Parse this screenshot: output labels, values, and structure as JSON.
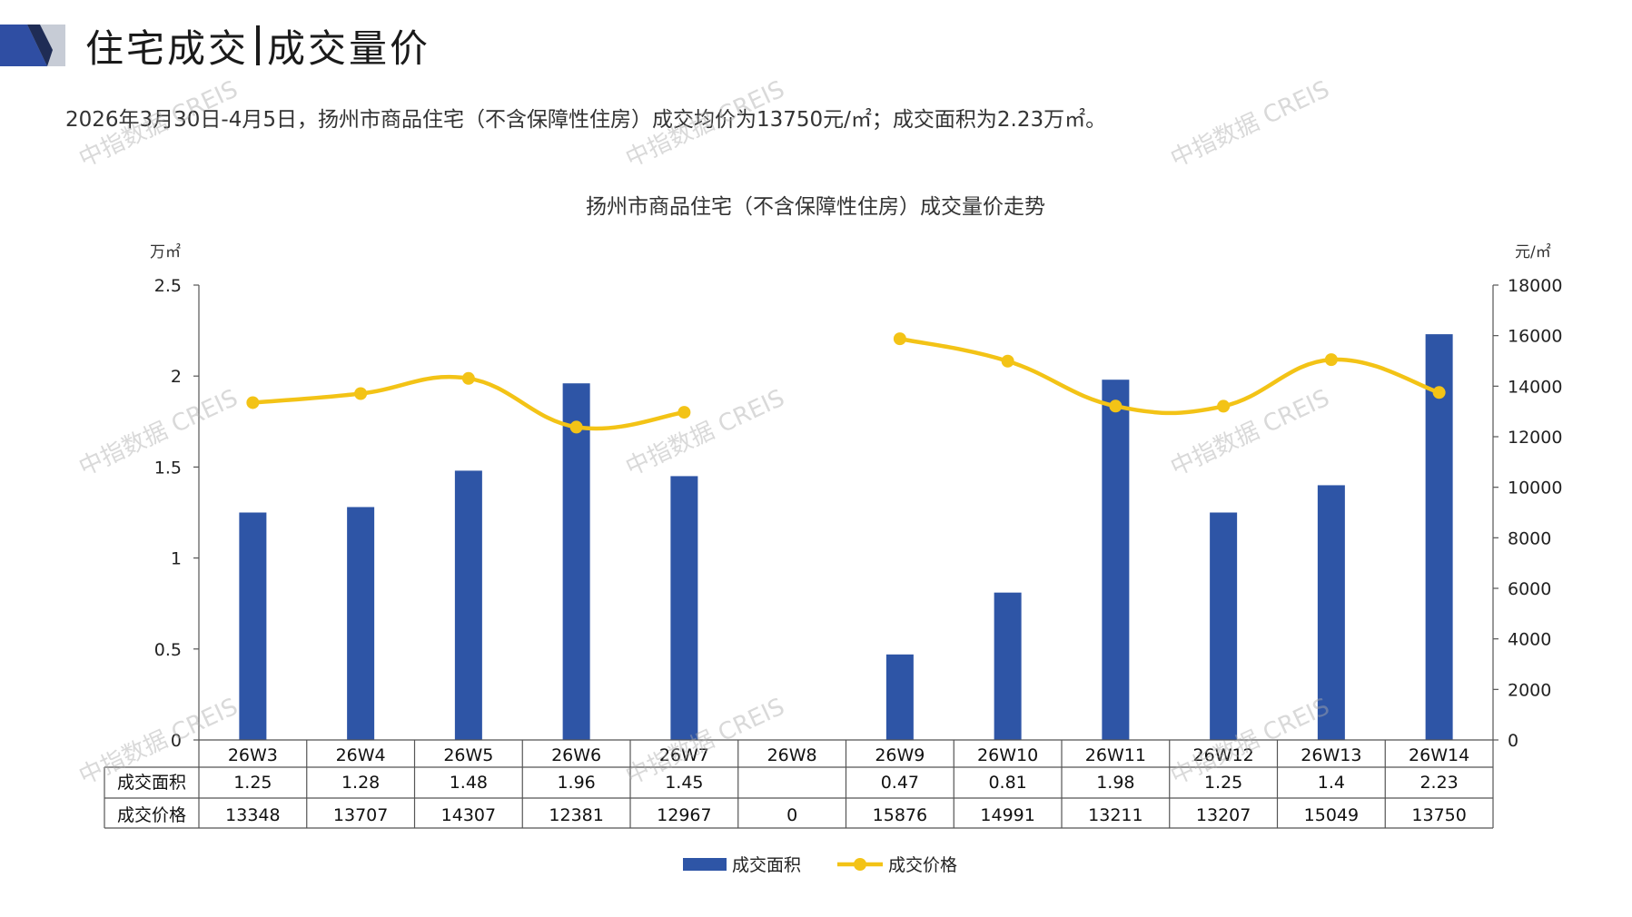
{
  "page": {
    "title_part1": "住宅成交",
    "title_part2": "成交量价",
    "summary": "2026年3月30日-4月5日，扬州市商品住宅（不含保障性住房）成交均价为13750元/㎡；成交面积为2.23万㎡。",
    "watermark": "中指数据 CREIS",
    "colors": {
      "logo_dark": "#2f4ea3",
      "logo_light": "#c7ccd6"
    }
  },
  "chart_data": {
    "type": "bar+line",
    "title": "扬州市商品住宅（不含保障性住房）成交量价走势",
    "left_unit": "万㎡",
    "right_unit": "元/㎡",
    "left_axis": {
      "ylim": [
        0,
        2.5
      ],
      "ticks": [
        "0",
        "0.5",
        "1",
        "1.5",
        "2",
        "2.5"
      ]
    },
    "right_axis": {
      "ylim": [
        0,
        18000
      ],
      "ticks": [
        "0",
        "2000",
        "4000",
        "6000",
        "8000",
        "10000",
        "12000",
        "14000",
        "16000",
        "18000"
      ]
    },
    "categories": [
      "26W3",
      "26W4",
      "26W5",
      "26W6",
      "26W7",
      "26W8",
      "26W9",
      "26W10",
      "26W11",
      "26W12",
      "26W13",
      "26W14"
    ],
    "series": [
      {
        "name": "成交面积",
        "type": "bar",
        "axis": "left",
        "color": "#2e55a6",
        "values": [
          1.25,
          1.28,
          1.48,
          1.96,
          1.45,
          null,
          0.47,
          0.81,
          1.98,
          1.25,
          1.4,
          2.23
        ],
        "labels": [
          "1.25",
          "1.28",
          "1.48",
          "1.96",
          "1.45",
          "",
          "0.47",
          "0.81",
          "1.98",
          "1.25",
          "1.4",
          "2.23"
        ]
      },
      {
        "name": "成交价格",
        "type": "line",
        "axis": "right",
        "color": "#f3c316",
        "values": [
          13348,
          13707,
          14307,
          12381,
          12967,
          null,
          15876,
          14991,
          13211,
          13207,
          15049,
          13750
        ],
        "labels": [
          "13348",
          "13707",
          "14307",
          "12381",
          "12967",
          "0",
          "15876",
          "14991",
          "13211",
          "13207",
          "15049",
          "13750"
        ]
      }
    ],
    "legend_position": "bottom"
  }
}
